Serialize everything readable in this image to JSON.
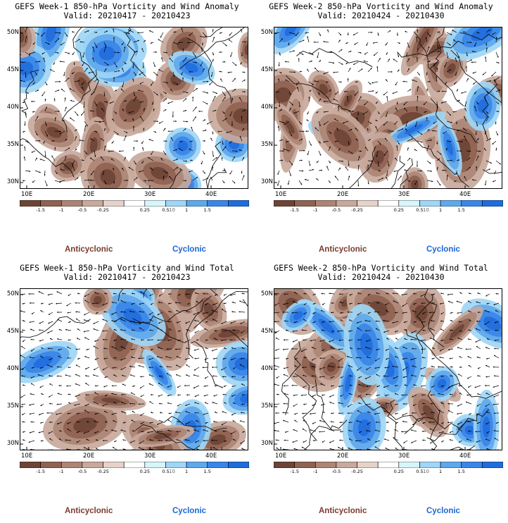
{
  "panels": [
    {
      "title": "GEFS Week-1 850-hPa Vorticity and Wind Anomaly",
      "valid": "Valid: 20210417 - 20210423",
      "seed": 11,
      "mode": "anomaly"
    },
    {
      "title": "GEFS Week-2 850-hPa Vorticity and Wind Anomaly",
      "valid": "Valid: 20210424 - 20210430",
      "seed": 23,
      "mode": "anomaly"
    },
    {
      "title": "GEFS Week-1 850-hPa Vorticity and Wind Total",
      "valid": "Valid: 20210417 - 20210423",
      "seed": 37,
      "mode": "total"
    },
    {
      "title": "GEFS Week-2 850-hPa Vorticity and Wind Total",
      "valid": "Valid: 20210424 - 20210430",
      "seed": 53,
      "mode": "total"
    }
  ],
  "lat_labels": [
    "50N",
    "45N",
    "40N",
    "35N",
    "30N"
  ],
  "lon_labels": [
    "10E",
    "20E",
    "30E",
    "40E"
  ],
  "colorbar": {
    "labels": [
      "-1.5",
      "-1",
      "-0.5",
      "-0.25",
      "0.25",
      "0.5",
      "1",
      "1.5"
    ],
    "unit": "10",
    "colors": [
      "#6e4436",
      "#8f6252",
      "#ad8575",
      "#c9a99c",
      "#e6d2ca",
      "#ffffff",
      "#d7f5fb",
      "#9fd6f5",
      "#5fa8ec",
      "#3a86e8",
      "#1f6ddb"
    ]
  },
  "legend": {
    "anticyclonic": "Anticyclonic",
    "cyclonic": "Cyclonic"
  }
}
